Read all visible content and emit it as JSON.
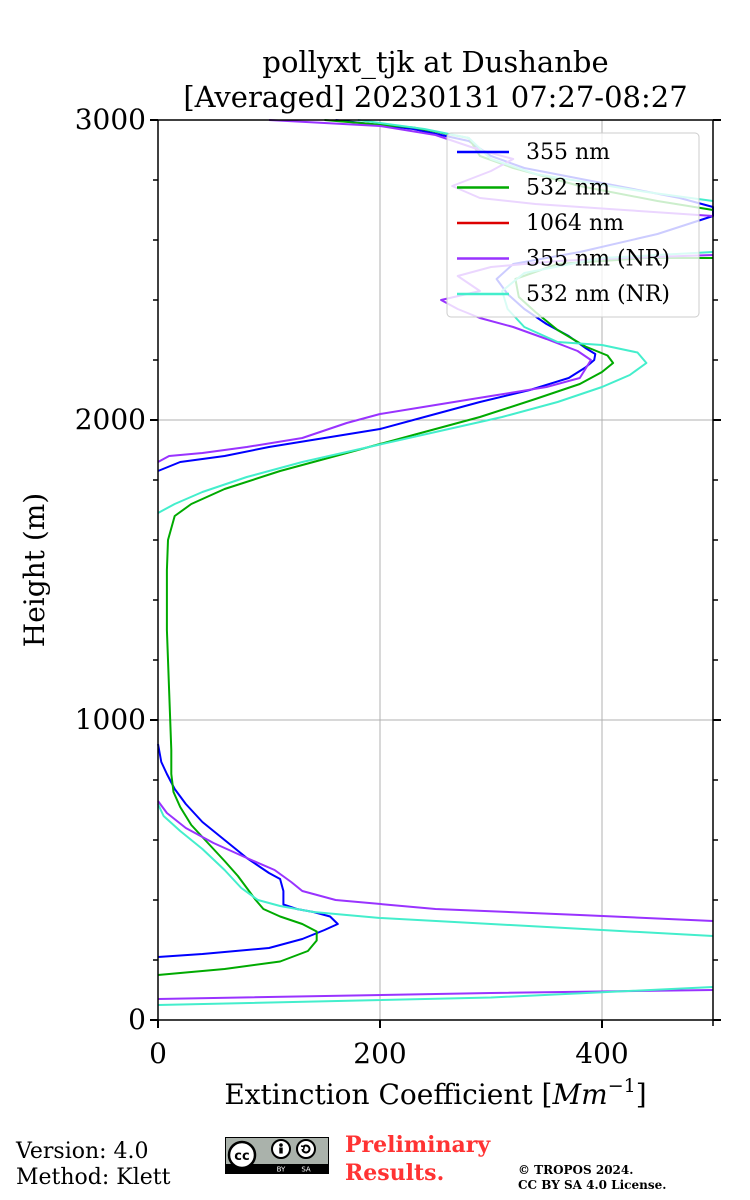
{
  "chart_data": {
    "type": "line",
    "orientation": "profile (x = value, y = height)",
    "title_line1": "pollyxt_tjk at Dushanbe",
    "title_line2": "[Averaged] 20230131 07:27-08:27",
    "xlabel": "Extinction Coefficient [",
    "xlabel_unit": "Mm",
    "xlabel_exp": "−1",
    "xlabel_close": "]",
    "ylabel": "Height (m)",
    "xlim": [
      0,
      500
    ],
    "ylim": [
      0,
      3000
    ],
    "xticks": [
      0,
      200,
      400
    ],
    "yticks": [
      0,
      1000,
      2000,
      3000
    ],
    "xtick_labels": [
      "0",
      "200",
      "400"
    ],
    "ytick_labels": [
      "0",
      "1000",
      "2000",
      "3000"
    ],
    "grid": true,
    "legend_position": "top-right",
    "series": [
      {
        "name": "355 nm",
        "color": "#0000ff",
        "points": [
          [
            0,
            210
          ],
          [
            40,
            220
          ],
          [
            100,
            240
          ],
          [
            130,
            270
          ],
          [
            150,
            300
          ],
          [
            162,
            320
          ],
          [
            155,
            345
          ],
          [
            140,
            360
          ],
          [
            125,
            370
          ],
          [
            113,
            385
          ],
          [
            113,
            400
          ],
          [
            113,
            430
          ],
          [
            110,
            470
          ],
          [
            100,
            490
          ],
          [
            80,
            540
          ],
          [
            60,
            600
          ],
          [
            40,
            660
          ],
          [
            25,
            720
          ],
          [
            15,
            770
          ],
          [
            8,
            820
          ],
          [
            3,
            860
          ],
          [
            0,
            920
          ]
        ],
        "points_upper": [
          [
            0,
            1830
          ],
          [
            20,
            1860
          ],
          [
            60,
            1880
          ],
          [
            100,
            1910
          ],
          [
            150,
            1940
          ],
          [
            200,
            1970
          ],
          [
            240,
            2010
          ],
          [
            290,
            2060
          ],
          [
            335,
            2100
          ],
          [
            370,
            2140
          ],
          [
            385,
            2175
          ],
          [
            393,
            2200
          ],
          [
            394,
            2220
          ],
          [
            385,
            2240
          ],
          [
            370,
            2280
          ],
          [
            350,
            2320
          ],
          [
            330,
            2370
          ],
          [
            315,
            2420
          ],
          [
            305,
            2470
          ],
          [
            320,
            2520
          ],
          [
            380,
            2560
          ],
          [
            450,
            2620
          ],
          [
            500,
            2680
          ],
          [
            500,
            2710
          ],
          [
            470,
            2740
          ],
          [
            400,
            2790
          ],
          [
            330,
            2840
          ],
          [
            300,
            2880
          ],
          [
            280,
            2930
          ],
          [
            230,
            2970
          ],
          [
            160,
            3000
          ]
        ]
      },
      {
        "name": "532 nm",
        "color": "#00aa00",
        "points": [
          [
            0,
            150
          ],
          [
            60,
            170
          ],
          [
            110,
            195
          ],
          [
            135,
            230
          ],
          [
            143,
            265
          ],
          [
            143,
            295
          ],
          [
            130,
            320
          ],
          [
            110,
            345
          ],
          [
            95,
            370
          ],
          [
            88,
            400
          ],
          [
            80,
            440
          ],
          [
            72,
            480
          ],
          [
            60,
            530
          ],
          [
            45,
            590
          ],
          [
            30,
            650
          ],
          [
            20,
            710
          ],
          [
            14,
            760
          ],
          [
            12,
            820
          ],
          [
            12,
            900
          ],
          [
            11,
            1000
          ],
          [
            10,
            1100
          ],
          [
            9,
            1200
          ],
          [
            8,
            1300
          ],
          [
            8,
            1400
          ],
          [
            8,
            1500
          ],
          [
            9,
            1600
          ],
          [
            15,
            1680
          ],
          [
            30,
            1720
          ],
          [
            60,
            1770
          ],
          [
            110,
            1830
          ],
          [
            170,
            1890
          ],
          [
            230,
            1950
          ],
          [
            290,
            2010
          ],
          [
            340,
            2070
          ],
          [
            380,
            2120
          ],
          [
            400,
            2160
          ],
          [
            410,
            2190
          ],
          [
            405,
            2215
          ],
          [
            385,
            2245
          ],
          [
            360,
            2300
          ],
          [
            340,
            2360
          ],
          [
            325,
            2410
          ],
          [
            322,
            2470
          ],
          [
            360,
            2520
          ],
          [
            440,
            2540
          ],
          [
            500,
            2540
          ]
        ],
        "points_upper": [
          [
            500,
            2700
          ],
          [
            450,
            2730
          ],
          [
            380,
            2780
          ],
          [
            320,
            2840
          ],
          [
            290,
            2880
          ],
          [
            280,
            2940
          ],
          [
            230,
            2975
          ],
          [
            150,
            3000
          ]
        ]
      },
      {
        "name": "1064 nm",
        "color": "#dd0000",
        "points": []
      },
      {
        "name": "355 nm (NR)",
        "color": "#9933ff",
        "points": [
          [
            0,
            70
          ],
          [
            300,
            90
          ],
          [
            500,
            100
          ]
        ],
        "points_mid": [
          [
            500,
            330
          ],
          [
            380,
            350
          ],
          [
            250,
            370
          ],
          [
            160,
            400
          ],
          [
            130,
            430
          ],
          [
            120,
            460
          ],
          [
            105,
            500
          ],
          [
            80,
            540
          ],
          [
            50,
            590
          ],
          [
            25,
            640
          ],
          [
            8,
            690
          ],
          [
            0,
            730
          ]
        ],
        "points_upper": [
          [
            0,
            1860
          ],
          [
            10,
            1880
          ],
          [
            40,
            1890
          ],
          [
            80,
            1910
          ],
          [
            130,
            1940
          ],
          [
            170,
            1990
          ],
          [
            200,
            2020
          ],
          [
            250,
            2050
          ],
          [
            300,
            2080
          ],
          [
            350,
            2110
          ],
          [
            380,
            2140
          ],
          [
            385,
            2170
          ],
          [
            390,
            2200
          ],
          [
            378,
            2230
          ],
          [
            350,
            2270
          ],
          [
            320,
            2310
          ],
          [
            290,
            2340
          ],
          [
            270,
            2370
          ],
          [
            255,
            2400
          ],
          [
            290,
            2430
          ],
          [
            270,
            2480
          ],
          [
            300,
            2510
          ],
          [
            360,
            2530
          ],
          [
            420,
            2540
          ],
          [
            500,
            2550
          ]
        ],
        "points_top": [
          [
            500,
            2680
          ],
          [
            420,
            2700
          ],
          [
            340,
            2720
          ],
          [
            290,
            2740
          ],
          [
            265,
            2780
          ],
          [
            300,
            2830
          ],
          [
            320,
            2870
          ],
          [
            290,
            2900
          ],
          [
            250,
            2950
          ],
          [
            200,
            2980
          ],
          [
            100,
            3000
          ]
        ]
      },
      {
        "name": "532 nm (NR)",
        "color": "#44eecc",
        "points": [
          [
            0,
            50
          ],
          [
            300,
            75
          ],
          [
            500,
            110
          ]
        ],
        "points_mid": [
          [
            500,
            280
          ],
          [
            400,
            300
          ],
          [
            300,
            320
          ],
          [
            200,
            340
          ],
          [
            140,
            360
          ],
          [
            110,
            380
          ],
          [
            90,
            400
          ],
          [
            75,
            440
          ],
          [
            60,
            500
          ],
          [
            40,
            570
          ],
          [
            20,
            630
          ],
          [
            5,
            680
          ],
          [
            0,
            720
          ]
        ],
        "points_upper": [
          [
            0,
            1690
          ],
          [
            15,
            1720
          ],
          [
            40,
            1760
          ],
          [
            80,
            1810
          ],
          [
            130,
            1860
          ],
          [
            190,
            1910
          ],
          [
            250,
            1960
          ],
          [
            310,
            2010
          ],
          [
            360,
            2060
          ],
          [
            400,
            2110
          ],
          [
            425,
            2150
          ],
          [
            440,
            2190
          ],
          [
            432,
            2225
          ],
          [
            400,
            2250
          ],
          [
            360,
            2260
          ],
          [
            330,
            2310
          ],
          [
            315,
            2370
          ],
          [
            310,
            2430
          ],
          [
            330,
            2490
          ],
          [
            400,
            2540
          ],
          [
            500,
            2560
          ]
        ],
        "points_top": [
          [
            500,
            2730
          ],
          [
            440,
            2760
          ],
          [
            390,
            2790
          ],
          [
            340,
            2820
          ],
          [
            300,
            2870
          ],
          [
            280,
            2940
          ],
          [
            240,
            2970
          ],
          [
            180,
            3000
          ]
        ]
      }
    ]
  },
  "footer": {
    "version": "Version: 4.0",
    "method": "Method: Klett",
    "preliminary_line1": "Preliminary",
    "preliminary_line2": "Results.",
    "copyright_line1": "© TROPOS 2024.",
    "copyright_line2": "CC BY SA 4.0 License.",
    "cc_badge_text": "cc",
    "cc_by": "BY",
    "cc_sa": "SA"
  }
}
